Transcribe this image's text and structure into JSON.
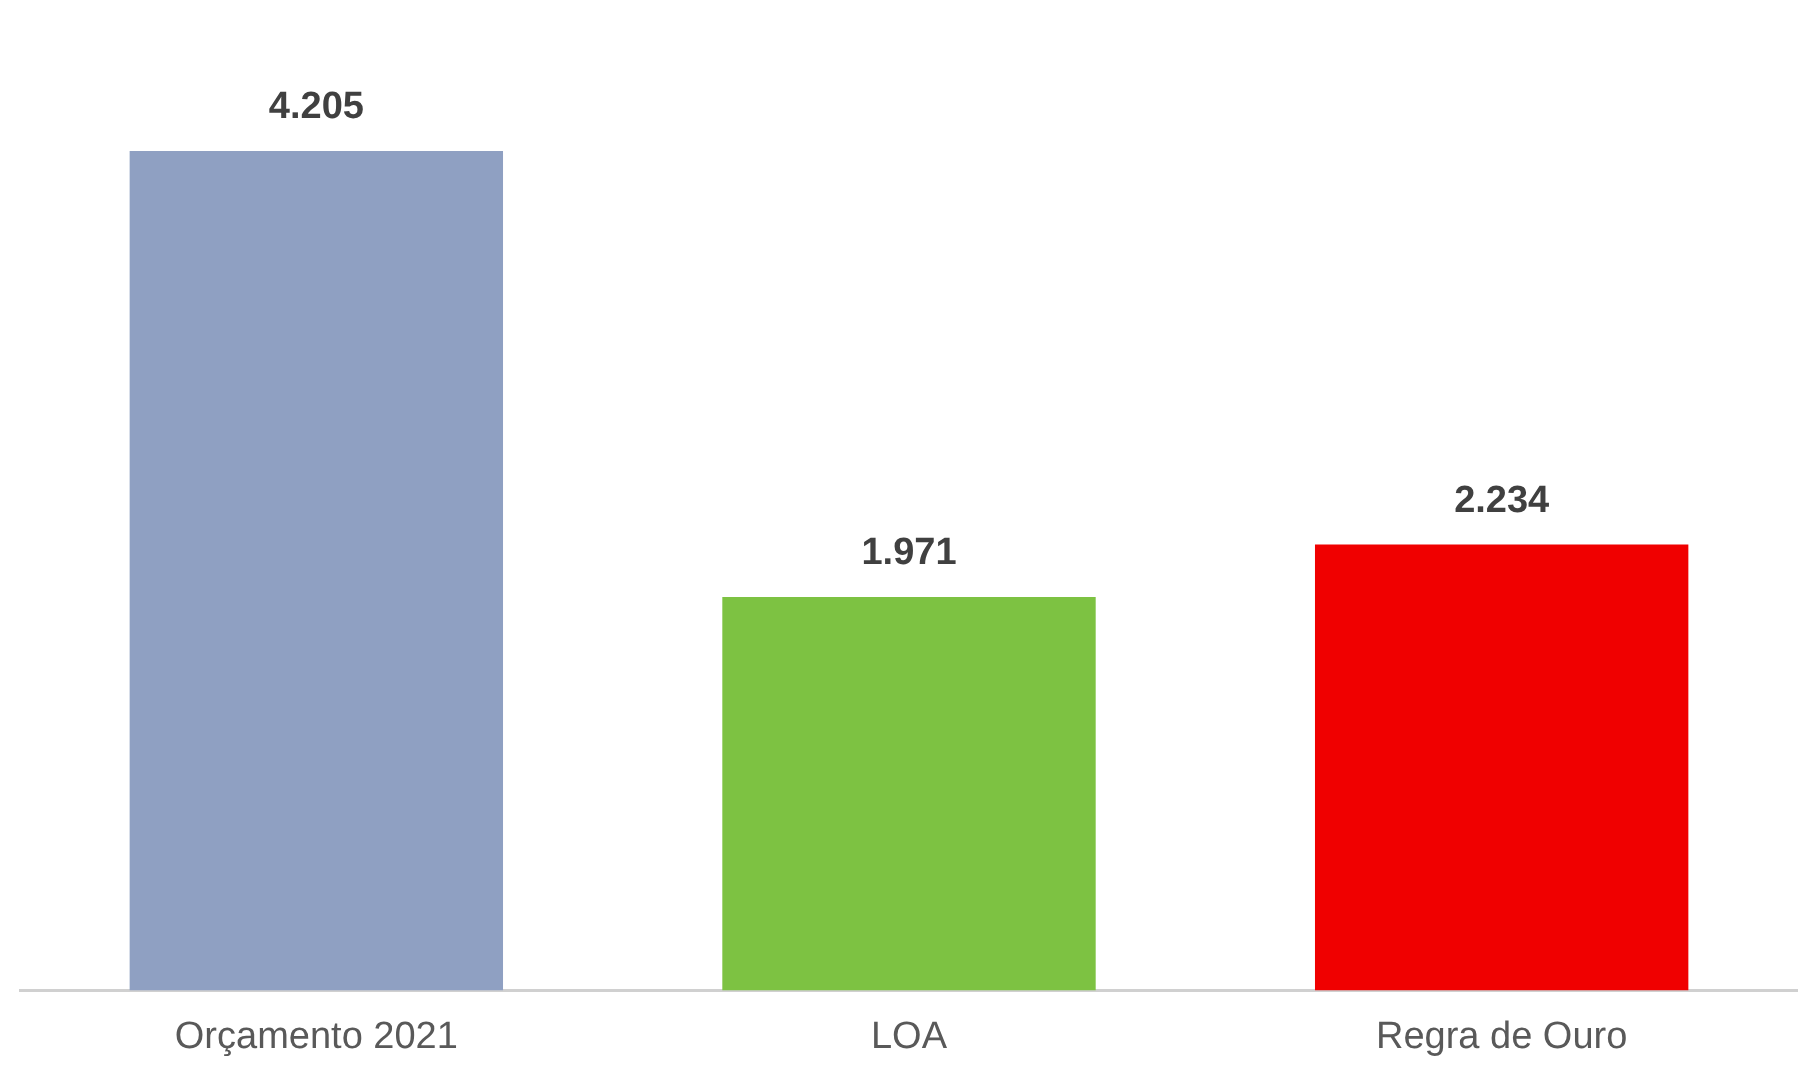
{
  "chart_data": {
    "type": "bar",
    "categories": [
      "Orçamento 2021",
      "LOA",
      "Regra de Ouro"
    ],
    "values": [
      4205,
      1971,
      2234
    ],
    "value_labels": [
      "4.205",
      "1.971",
      "2.234"
    ],
    "colors": [
      "#8fa0c2",
      "#7dc242",
      "#f00000"
    ],
    "grid": false,
    "legend": false
  }
}
